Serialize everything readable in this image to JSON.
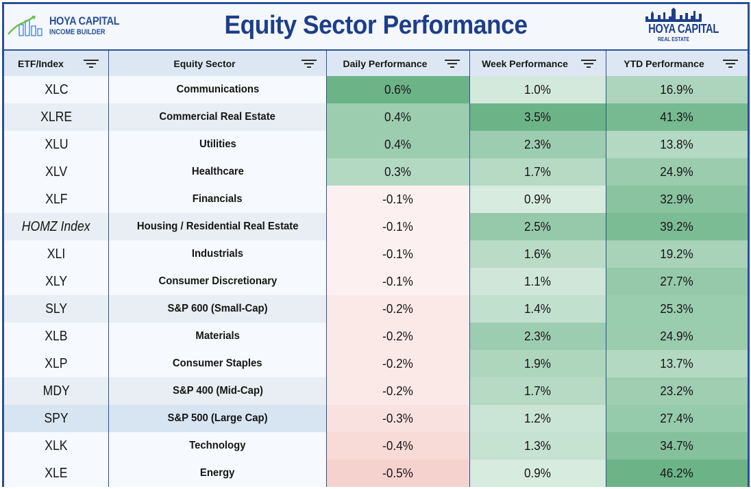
{
  "header": {
    "title": "Equity Sector Performance",
    "left_logo": {
      "name": "HOYA CAPITAL",
      "sub": "INCOME BUILDER"
    },
    "right_logo": {
      "name": "HOYA CAPITAL",
      "sub": "REAL ESTATE"
    }
  },
  "colors": {
    "frame": "#2a4f98",
    "title": "#1e3e8a",
    "positive_max": "#5fae7e",
    "negative_max": "#f6d2cf",
    "highlight_row": "#d7e5f2"
  },
  "chart_data": {
    "type": "table",
    "title": "Equity Sector Performance",
    "columns": [
      "ETF/Index",
      "Equity Sector",
      "Daily Performance",
      "Week Performance",
      "YTD Performance"
    ],
    "rows": [
      {
        "etf": "XLC",
        "sector": "Communications",
        "daily": "0.6%",
        "week": "1.0%",
        "ytd": "16.9%"
      },
      {
        "etf": "XLRE",
        "sector": "Commercial Real Estate",
        "daily": "0.4%",
        "week": "3.5%",
        "ytd": "41.3%"
      },
      {
        "etf": "XLU",
        "sector": "Utilities",
        "daily": "0.4%",
        "week": "2.3%",
        "ytd": "13.8%"
      },
      {
        "etf": "XLV",
        "sector": "Healthcare",
        "daily": "0.3%",
        "week": "1.7%",
        "ytd": "24.9%"
      },
      {
        "etf": "XLF",
        "sector": "Financials",
        "daily": "-0.1%",
        "week": "0.9%",
        "ytd": "32.9%"
      },
      {
        "etf": "HOMZ Index",
        "sector": "Housing / Residential Real Estate",
        "daily": "-0.1%",
        "week": "2.5%",
        "ytd": "39.2%"
      },
      {
        "etf": "XLI",
        "sector": "Industrials",
        "daily": "-0.1%",
        "week": "1.6%",
        "ytd": "19.2%"
      },
      {
        "etf": "XLY",
        "sector": "Consumer Discretionary",
        "daily": "-0.1%",
        "week": "1.1%",
        "ytd": "27.7%"
      },
      {
        "etf": "SLY",
        "sector": "S&P 600 (Small-Cap)",
        "daily": "-0.2%",
        "week": "1.4%",
        "ytd": "25.3%"
      },
      {
        "etf": "XLB",
        "sector": "Materials",
        "daily": "-0.2%",
        "week": "2.3%",
        "ytd": "24.9%"
      },
      {
        "etf": "XLP",
        "sector": "Consumer Staples",
        "daily": "-0.2%",
        "week": "1.9%",
        "ytd": "13.7%"
      },
      {
        "etf": "MDY",
        "sector": "S&P 400 (Mid-Cap)",
        "daily": "-0.2%",
        "week": "1.7%",
        "ytd": "23.2%"
      },
      {
        "etf": "SPY",
        "sector": "S&P 500 (Large Cap)",
        "daily": "-0.3%",
        "week": "1.2%",
        "ytd": "27.4%"
      },
      {
        "etf": "XLK",
        "sector": "Technology",
        "daily": "-0.4%",
        "week": "1.3%",
        "ytd": "34.7%"
      },
      {
        "etf": "XLE",
        "sector": "Energy",
        "daily": "-0.5%",
        "week": "0.9%",
        "ytd": "46.2%"
      }
    ],
    "shaded_etf_cells": [
      "XLRE",
      "HOMZ Index",
      "SLY",
      "MDY",
      "SPY"
    ],
    "italic_etf_cells": [
      "HOMZ Index"
    ]
  }
}
